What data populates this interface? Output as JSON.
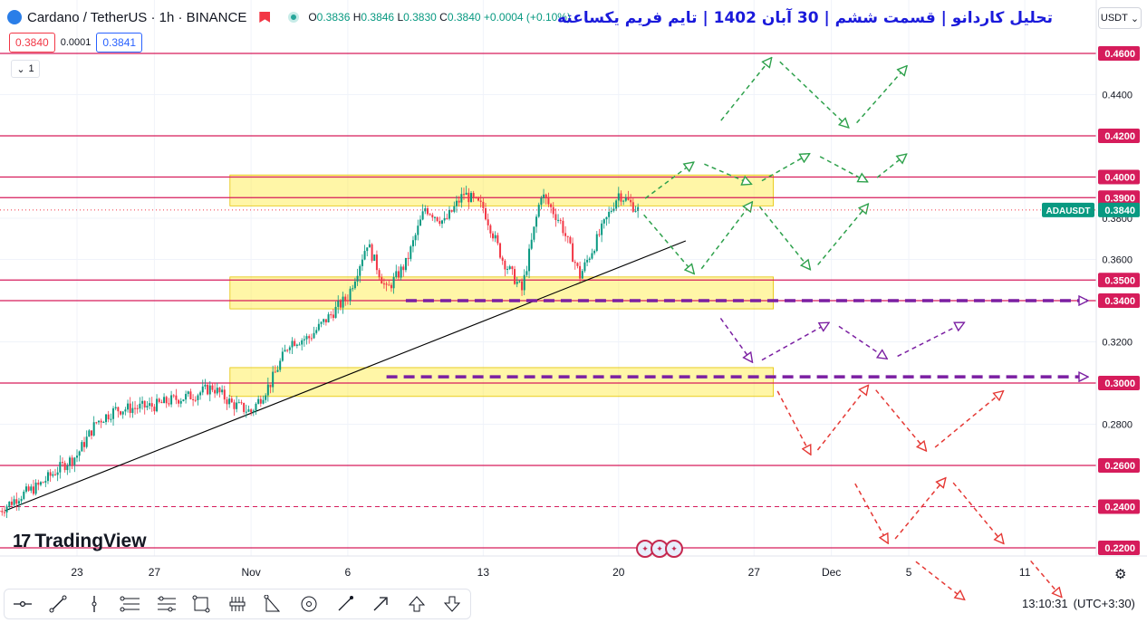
{
  "header": {
    "symbol": "Cardano / TetherUS · 1h · BINANCE",
    "ohlc": {
      "o_label": "O",
      "o": "0.3836",
      "h_label": "H",
      "h": "0.3846",
      "l_label": "L",
      "l": "0.3830",
      "c_label": "C",
      "c": "0.3840",
      "change": "+0.0004 (+0.10%)"
    },
    "sell_price": "0.3840",
    "spread": "0.0001",
    "buy_price": "0.3841",
    "indicators_count": "1",
    "title_fa": "تحلیل کاردانو | قسمت ششم | 30 آبان 1402 | تایم فریم یکساعته",
    "currency": "USDT"
  },
  "branding": {
    "logo_text": "TradingView"
  },
  "status": {
    "time": "13:10:31",
    "timezone": "(UTC+3:30)"
  },
  "colors": {
    "up": "#089981",
    "down": "#f23645",
    "level_line": "#d61c5b",
    "zone_fill": "#ffeb3b",
    "green_path": "#2ea14c",
    "purple_path": "#7b1fa2",
    "red_path": "#e53935",
    "trendline": "#000000"
  },
  "toolbar": {
    "tools": [
      "crosshair-icon",
      "trendline-icon",
      "vertical-line-icon",
      "fib-icon",
      "pattern-icon",
      "rectangle-icon",
      "measure-icon",
      "triangle-icon",
      "target-icon",
      "brush-icon",
      "arrow-icon",
      "arrow-up-icon",
      "arrow-down-icon"
    ]
  },
  "chart_data": {
    "type": "candlestick",
    "symbol": "ADAUSDT",
    "timeframe": "1h",
    "x_ticks": [
      "23",
      "27",
      "Nov",
      "6",
      "13",
      "20",
      "27",
      "Dec",
      "5",
      "11"
    ],
    "y_ticks": [
      0.22,
      0.24,
      0.26,
      0.28,
      0.3,
      0.32,
      0.34,
      0.36,
      0.38,
      0.4,
      0.42,
      0.44,
      0.46
    ],
    "y_range": [
      0.213,
      0.478
    ],
    "last_price_label": "ADAUSDT",
    "last_price": "0.3840",
    "levels": [
      0.46,
      0.42,
      0.4,
      0.39,
      0.35,
      0.34,
      0.3,
      0.26,
      0.24,
      0.22
    ],
    "level_labels": [
      "0.4600",
      "0.4200",
      "0.4000",
      "0.3900",
      "0.3500",
      "0.3400",
      "0.3000",
      "0.2600",
      "0.2400",
      "0.2200"
    ],
    "dashed_levels": [
      0.24
    ],
    "zones": [
      {
        "from_x": "Oct 31",
        "to_x": "Nov 28",
        "bottom": 0.386,
        "top": 0.401
      },
      {
        "from_x": "Oct 31",
        "to_x": "Nov 28",
        "bottom": 0.336,
        "top": 0.3515
      },
      {
        "from_x": "Oct 31",
        "to_x": "Nov 28",
        "bottom": 0.2935,
        "top": 0.3075
      }
    ],
    "trendline": {
      "from": [
        "Oct 19",
        0.238
      ],
      "to": [
        "Nov 23",
        0.369
      ]
    },
    "price_path": [
      [
        "Oct 19",
        0.238
      ],
      [
        "Oct 20",
        0.245
      ],
      [
        "Oct 21",
        0.25
      ],
      [
        "Oct 22",
        0.258
      ],
      [
        "Oct 23",
        0.265
      ],
      [
        "Oct 24",
        0.281
      ],
      [
        "Oct 25",
        0.287
      ],
      [
        "Oct 26",
        0.288
      ],
      [
        "Oct 27",
        0.289
      ],
      [
        "Oct 28",
        0.292
      ],
      [
        "Oct 29",
        0.294
      ],
      [
        "Oct 30",
        0.298
      ],
      [
        "Oct 31",
        0.29
      ],
      [
        "Nov 1",
        0.286
      ],
      [
        "Nov 2",
        0.3
      ],
      [
        "Nov 3",
        0.32
      ],
      [
        "Nov 4",
        0.322
      ],
      [
        "Nov 5",
        0.332
      ],
      [
        "Nov 6",
        0.342
      ],
      [
        "Nov 7",
        0.368
      ],
      [
        "Nov 8",
        0.345
      ],
      [
        "Nov 9",
        0.358
      ],
      [
        "Nov 10",
        0.385
      ],
      [
        "Nov 11",
        0.378
      ],
      [
        "Nov 12",
        0.392
      ],
      [
        "Nov 13",
        0.385
      ],
      [
        "Nov 14",
        0.36
      ],
      [
        "Nov 15",
        0.345
      ],
      [
        "Nov 16",
        0.392
      ],
      [
        "Nov 17",
        0.378
      ],
      [
        "Nov 18",
        0.352
      ],
      [
        "Nov 19",
        0.372
      ],
      [
        "Nov 20",
        0.392
      ],
      [
        "Nov 21",
        0.384
      ]
    ],
    "scenarios": {
      "green": [
        [
          [
            "Nov 21",
            0.387
          ],
          [
            "Nov 24",
            0.408
          ],
          [
            "Nov 27",
            0.396
          ],
          [
            "Nov 30",
            0.412
          ],
          [
            "Dec 3",
            0.397
          ],
          [
            "Dec 5",
            0.412
          ]
        ],
        [
          [
            "Nov 21",
            0.385
          ],
          [
            "Nov 24",
            0.352
          ],
          [
            "Nov 27",
            0.389
          ],
          [
            "Nov 30",
            0.354
          ],
          [
            "Dec 3",
            0.388
          ]
        ],
        [
          [
            "Nov 25",
            0.424
          ],
          [
            "Nov 28",
            0.459
          ],
          [
            "Dec 2",
            0.423
          ],
          [
            "Dec 5",
            0.455
          ]
        ]
      ],
      "purple": [
        [
          [
            "Nov 25",
            0.335
          ],
          [
            "Nov 27",
            0.309
          ],
          [
            "Dec 1",
            0.33
          ],
          [
            "Dec 4",
            0.311
          ],
          [
            "Dec 8",
            0.33
          ]
        ]
      ],
      "red": [
        [
          [
            "Nov 28",
            0.3
          ],
          [
            "Nov 30",
            0.264
          ],
          [
            "Dec 3",
            0.3
          ],
          [
            "Dec 6",
            0.266
          ],
          [
            "Dec 10",
            0.297
          ]
        ],
        [
          [
            "Dec 2",
            0.255
          ],
          [
            "Dec 4",
            0.221
          ],
          [
            "Dec 7",
            0.255
          ],
          [
            "Dec 10",
            0.221
          ]
        ],
        [
          [
            "Dec 5",
            0.216
          ],
          [
            "Dec 8",
            0.194
          ]
        ],
        [
          [
            "Dec 11",
            0.217
          ],
          [
            "Dec 13",
            0.195
          ]
        ]
      ],
      "purple_dashed_levels": [
        0.34,
        0.303
      ]
    }
  }
}
